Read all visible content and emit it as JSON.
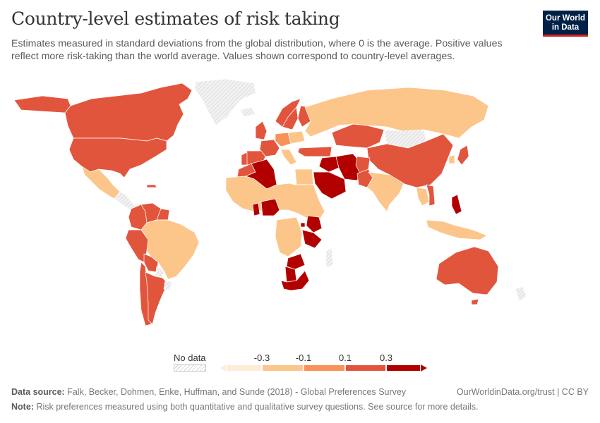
{
  "header": {
    "title": "Country-level estimates of risk taking",
    "subtitle": "Estimates measured in standard deviations from the global distribution, where 0 is the average. Positive values reflect more risk-taking than the world average. Values shown correspond to country-level averages."
  },
  "logo": {
    "line1": "Our World",
    "line2": "in Data"
  },
  "legend": {
    "no_data_label": "No data",
    "ticks": [
      "-0.3",
      "-0.1",
      "0.1",
      "0.3"
    ],
    "colors": [
      "#fdecd8",
      "#fcc68a",
      "#f7925a",
      "#e2553d",
      "#b20000"
    ]
  },
  "map": {
    "regions": [
      {
        "name": "Greenland",
        "value": null
      },
      {
        "name": "Canada",
        "value": 0.2
      },
      {
        "name": "United States",
        "value": 0.2
      },
      {
        "name": "Mexico",
        "value": -0.2
      },
      {
        "name": "Guatemala",
        "value": null
      },
      {
        "name": "Haiti",
        "value": 0.2
      },
      {
        "name": "Colombia",
        "value": 0.1
      },
      {
        "name": "Venezuela",
        "value": 0.2
      },
      {
        "name": "Suriname",
        "value": 0.2
      },
      {
        "name": "Peru",
        "value": 0.2
      },
      {
        "name": "Brazil",
        "value": -0.2
      },
      {
        "name": "Bolivia",
        "value": 0.2
      },
      {
        "name": "Chile",
        "value": 0.2
      },
      {
        "name": "Argentina",
        "value": 0.1
      },
      {
        "name": "Paraguay",
        "value": null
      },
      {
        "name": "Uruguay",
        "value": null
      },
      {
        "name": "Iceland",
        "value": null
      },
      {
        "name": "Norway",
        "value": 0.1
      },
      {
        "name": "Sweden",
        "value": 0.2
      },
      {
        "name": "Finland",
        "value": 0.1
      },
      {
        "name": "United Kingdom",
        "value": 0.1
      },
      {
        "name": "France",
        "value": 0.1
      },
      {
        "name": "Spain",
        "value": 0.2
      },
      {
        "name": "Portugal",
        "value": 0.2
      },
      {
        "name": "Germany",
        "value": -0.1
      },
      {
        "name": "Poland",
        "value": -0.2
      },
      {
        "name": "Italy",
        "value": -0.2
      },
      {
        "name": "Russia",
        "value": -0.3
      },
      {
        "name": "Kazakhstan",
        "value": 0.2
      },
      {
        "name": "Turkey",
        "value": 0.1
      },
      {
        "name": "Iran",
        "value": 0.4
      },
      {
        "name": "Iraq",
        "value": 0.3
      },
      {
        "name": "Saudi Arabia",
        "value": 0.4
      },
      {
        "name": "Afghanistan",
        "value": 0.2
      },
      {
        "name": "Pakistan",
        "value": 0.1
      },
      {
        "name": "India",
        "value": -0.2
      },
      {
        "name": "China",
        "value": 0.1
      },
      {
        "name": "Mongolia",
        "value": null
      },
      {
        "name": "Japan",
        "value": 0.1
      },
      {
        "name": "South Korea",
        "value": -0.2
      },
      {
        "name": "Thailand",
        "value": -0.2
      },
      {
        "name": "Vietnam",
        "value": 0.1
      },
      {
        "name": "Philippines",
        "value": 0.3
      },
      {
        "name": "Indonesia",
        "value": -0.3
      },
      {
        "name": "Australia",
        "value": 0.2
      },
      {
        "name": "New Zealand",
        "value": null
      },
      {
        "name": "Morocco",
        "value": 0.2
      },
      {
        "name": "Algeria",
        "value": 0.4
      },
      {
        "name": "Egypt",
        "value": -0.2
      },
      {
        "name": "Nigeria",
        "value": 0.4
      },
      {
        "name": "Ghana",
        "value": 0.4
      },
      {
        "name": "Cameroon",
        "value": -0.3
      },
      {
        "name": "Kenya",
        "value": 0.3
      },
      {
        "name": "Tanzania",
        "value": 0.4
      },
      {
        "name": "Rwanda",
        "value": 0.3
      },
      {
        "name": "Zimbabwe",
        "value": 0.4
      },
      {
        "name": "Botswana",
        "value": 0.4
      },
      {
        "name": "South Africa",
        "value": 0.4
      },
      {
        "name": "Madagascar",
        "value": null
      }
    ]
  },
  "footer": {
    "source_label": "Data source:",
    "source_text": "Falk, Becker, Dohmen, Enke, Huffman, and Sunde (2018) - Global Preferences Survey",
    "credit": "OurWorldinData.org/trust | CC BY",
    "note_label": "Note:",
    "note_text": "Risk preferences measured using both quantitative and qualitative survey questions. See source for more details."
  }
}
